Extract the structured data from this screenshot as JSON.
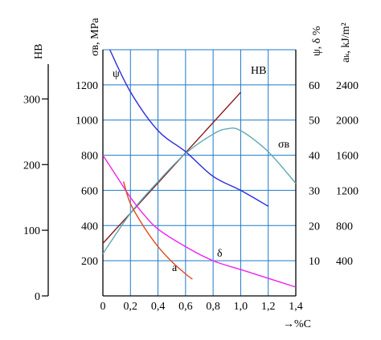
{
  "chart_data": {
    "type": "line",
    "xlabel": "→%C",
    "x_ticks": [
      "0",
      "0,2",
      "0,4",
      "0,6",
      "0,8",
      "1,0",
      "1,2",
      "1,4"
    ],
    "xlim": [
      0,
      1.4
    ],
    "axes": {
      "hb": {
        "label": "HB",
        "ticks": [
          "0",
          "100",
          "200",
          "300"
        ],
        "range": [
          0,
          375
        ]
      },
      "sigma": {
        "label": "σв, MPa",
        "ticks": [
          "200",
          "400",
          "600",
          "800",
          "1000",
          "1200"
        ],
        "range": [
          0,
          1400
        ]
      },
      "psi_delta": {
        "label": "ψ, δ %",
        "ticks": [
          "10",
          "20",
          "30",
          "40",
          "50",
          "60"
        ],
        "range": [
          0,
          70
        ]
      },
      "ak": {
        "label": "aₖ, kJ/m²",
        "ticks": [
          "400",
          "800",
          "1200",
          "1600",
          "2000",
          "2400"
        ],
        "range": [
          0,
          2800
        ]
      }
    },
    "grid": true,
    "series": [
      {
        "name": "HB",
        "axis": "hb",
        "color": "#8b1a1a",
        "x": [
          0.0,
          1.0
        ],
        "y": [
          80,
          310
        ]
      },
      {
        "name": "ψ",
        "axis": "psi_delta",
        "color": "#2a2ae0",
        "x": [
          0.05,
          0.2,
          0.4,
          0.6,
          0.8,
          1.0,
          1.2
        ],
        "y": [
          70,
          58,
          47,
          41,
          34,
          30,
          25.5
        ]
      },
      {
        "name": "σв",
        "axis": "sigma",
        "color": "#5fa8b4",
        "x": [
          0.0,
          0.2,
          0.4,
          0.6,
          0.8,
          0.9,
          1.0,
          1.2,
          1.4
        ],
        "y": [
          240,
          470,
          650,
          810,
          920,
          950,
          940,
          820,
          640
        ]
      },
      {
        "name": "δ",
        "axis": "psi_delta",
        "color": "#ee22ee",
        "x": [
          0.0,
          0.1,
          0.2,
          0.3,
          0.4,
          0.6,
          0.8,
          1.0,
          1.2,
          1.4
        ],
        "y": [
          40,
          34,
          28,
          23,
          19,
          14,
          10,
          7.5,
          5,
          2.5
        ]
      },
      {
        "name": "a",
        "axis": "ak",
        "color": "#e24a1e",
        "x": [
          0.15,
          0.2,
          0.3,
          0.4,
          0.5,
          0.6,
          0.65
        ],
        "y": [
          1300,
          1050,
          780,
          560,
          390,
          250,
          190
        ]
      }
    ],
    "annotations": [
      "ψ",
      "HB",
      "σв",
      "δ",
      "a"
    ]
  }
}
